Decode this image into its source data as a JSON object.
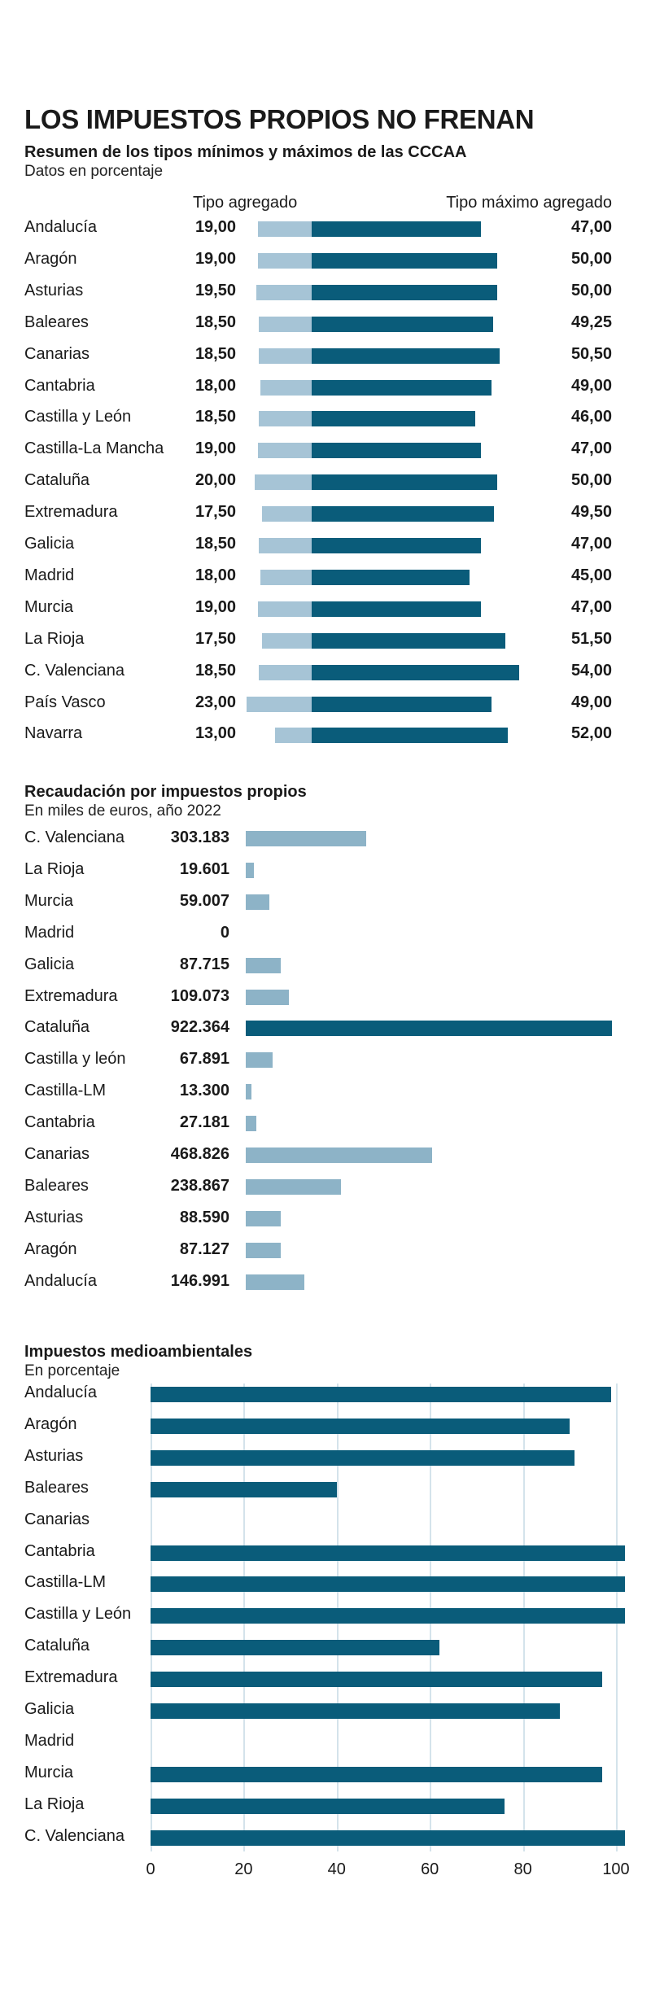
{
  "title": "LOS IMPUESTOS PROPIOS NO FRENAN",
  "colors": {
    "dark": "#0a5c7a",
    "light": "#a6c4d6",
    "mid": "#8db3c7",
    "grid": "#d4e3eb"
  },
  "chart_data": [
    {
      "type": "bar",
      "title": "Resumen de los tipos mínimos y máximos de las CCCAA",
      "subtitle": "Datos en porcentaje",
      "col_left_label": "Tipo agregado",
      "col_right_label": "Tipo máximo agregado",
      "categories": [
        "Andalucía",
        "Aragón",
        "Asturias",
        "Baleares",
        "Canarias",
        "Cantabria",
        "Castilla y León",
        "Castilla-La Mancha",
        "Cataluña",
        "Extremadura",
        "Galicia",
        "Madrid",
        "Murcia",
        "La Rioja",
        "C. Valenciana",
        "País Vasco",
        "Navarra"
      ],
      "series": [
        {
          "values": [
            19.0,
            19.0,
            19.5,
            18.5,
            18.5,
            18.0,
            18.5,
            19.0,
            20.0,
            17.5,
            18.5,
            18.0,
            19.0,
            17.5,
            18.5,
            23.0,
            13.0
          ],
          "labels": [
            "19,00",
            "19,00",
            "19,50",
            "18,50",
            "18,50",
            "18,00",
            "18,50",
            "19,00",
            "20,00",
            "17,50",
            "18,50",
            "18,00",
            "19,00",
            "17,50",
            "18,50",
            "23,00",
            "13,00"
          ]
        },
        {
          "values": [
            47.0,
            50.0,
            50.0,
            49.25,
            50.5,
            49.0,
            46.0,
            47.0,
            50.0,
            49.5,
            47.0,
            45.0,
            47.0,
            51.5,
            54.0,
            49.0,
            52.0
          ],
          "labels": [
            "47,00",
            "50,00",
            "50,00",
            "49,25",
            "50,50",
            "49,00",
            "46,00",
            "47,00",
            "50,00",
            "49,50",
            "47,00",
            "45,00",
            "47,00",
            "51,50",
            "54,00",
            "49,00",
            "52,00"
          ]
        }
      ]
    },
    {
      "type": "bar",
      "title": "Recaudación por impuestos propios",
      "subtitle": "En miles de euros, año 2022",
      "categories": [
        "C. Valenciana",
        "La Rioja",
        "Murcia",
        "Madrid",
        "Galicia",
        "Extremadura",
        "Cataluña",
        "Castilla y león",
        "Castilla-LM",
        "Cantabria",
        "Canarias",
        "Baleares",
        "Asturias",
        "Aragón",
        "Andalucía"
      ],
      "values": [
        303183,
        19601,
        59007,
        0,
        87715,
        109073,
        922364,
        67891,
        13300,
        27181,
        468826,
        238867,
        88590,
        87127,
        146991
      ],
      "labels": [
        "303.183",
        "19.601",
        "59.007",
        "0",
        "87.715",
        "109.073",
        "922.364",
        "67.891",
        "13.300",
        "27.181",
        "468.826",
        "238.867",
        "88.590",
        "87.127",
        "146.991"
      ]
    },
    {
      "type": "bar",
      "title": "Impuestos medioambientales",
      "subtitle": "En porcentaje",
      "categories": [
        "Andalucía",
        "Aragón",
        "Asturias",
        "Baleares",
        "Canarias",
        "Cantabria",
        "Castilla-LM",
        "Castilla y León",
        "Cataluña",
        "Extremadura",
        "Galicia",
        "Madrid",
        "Murcia",
        "La Rioja",
        "C. Valenciana"
      ],
      "values": [
        99,
        90,
        91,
        40,
        0,
        102,
        102,
        102,
        62,
        97,
        88,
        0,
        97,
        76,
        102
      ],
      "xlim": [
        0,
        102
      ],
      "xticks": [
        "0",
        "20",
        "40",
        "60",
        "80",
        "100"
      ],
      "grid": true
    }
  ]
}
